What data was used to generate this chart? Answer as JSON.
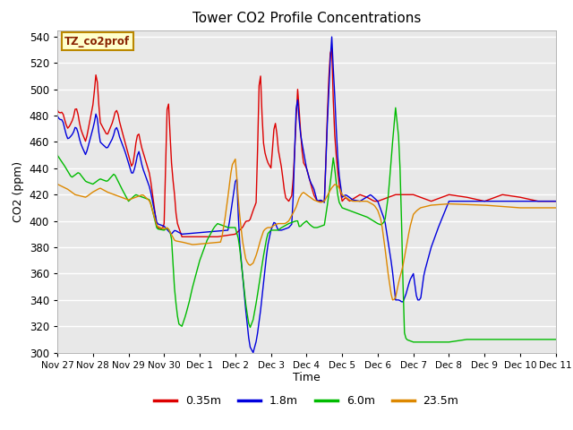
{
  "title": "Tower CO2 Profile Concentrations",
  "xlabel": "Time",
  "ylabel": "CO2 (ppm)",
  "ylim": [
    300,
    545
  ],
  "yticks": [
    300,
    320,
    340,
    360,
    380,
    400,
    420,
    440,
    460,
    480,
    500,
    520,
    540
  ],
  "colors": {
    "0.35m": "#dd0000",
    "1.8m": "#0000dd",
    "6.0m": "#00bb00",
    "23.5m": "#dd8800"
  },
  "legend_label": "TZ_co2prof",
  "legend_box_facecolor": "#ffffcc",
  "legend_box_edgecolor": "#bb8800",
  "bg_color": "#e8e8e8",
  "plot_bg": "#e8e8e8",
  "line_width": 1.0,
  "x_tick_labels": [
    "Nov 27",
    "Nov 28",
    "Nov 29",
    "Nov 30",
    "Dec 1",
    "Dec 2",
    "Dec 3",
    "Dec 4",
    "Dec 5",
    "Dec 6",
    "Dec 7",
    "Dec 8",
    "Dec 9",
    "Dec 10",
    "Dec 11"
  ]
}
